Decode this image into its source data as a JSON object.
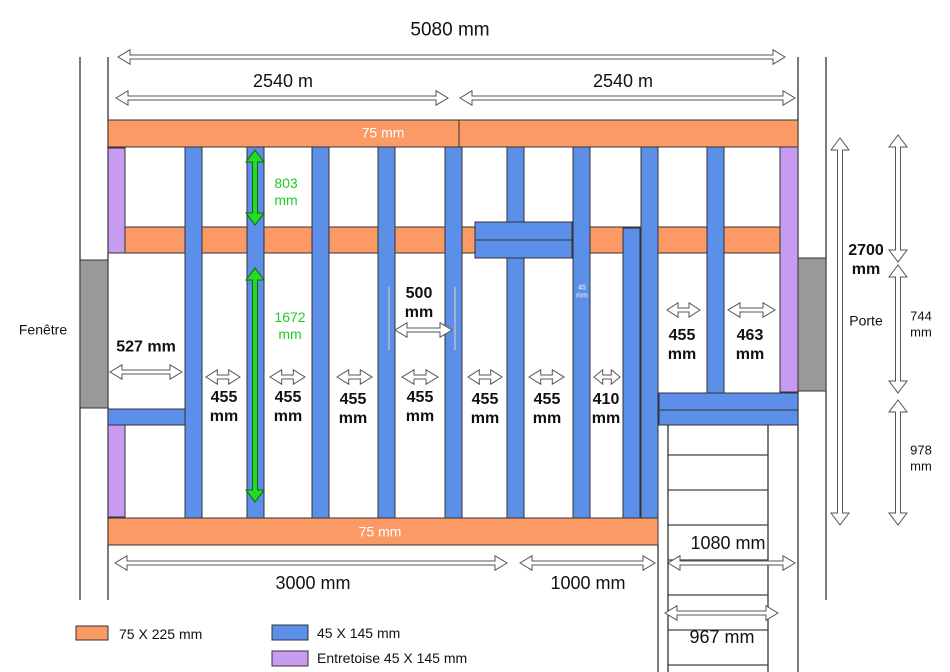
{
  "dimensions": {
    "overall_width": "5080 mm",
    "left_half": "2540 m",
    "right_half": "2540 m",
    "top_beam": "75 mm",
    "bottom_beam": "75 mm",
    "upper_span": "803 mm",
    "lower_span": "1672 mm",
    "spacing_500": "500 mm",
    "beam_note": "45 mm",
    "window_gap": "527 mm",
    "spacings": [
      "455 mm",
      "455 mm",
      "455 mm",
      "455 mm",
      "455 mm",
      "455 mm",
      "410 mm"
    ],
    "right_spacings": [
      "455 mm",
      "463 mm"
    ],
    "depth": "2700 mm",
    "door_height": "744 mm",
    "stair_height": "978 mm",
    "bottom_left": "3000 mm",
    "bottom_mid": "1000 mm",
    "stair_width": "1080 mm",
    "stair_inner": "967 mm"
  },
  "labels": {
    "window": "Fenêtre",
    "door": "Porte"
  },
  "legend": [
    "75 X 225 mm",
    "45 X 145 mm",
    "Entretoise 45 X 145 mm"
  ]
}
